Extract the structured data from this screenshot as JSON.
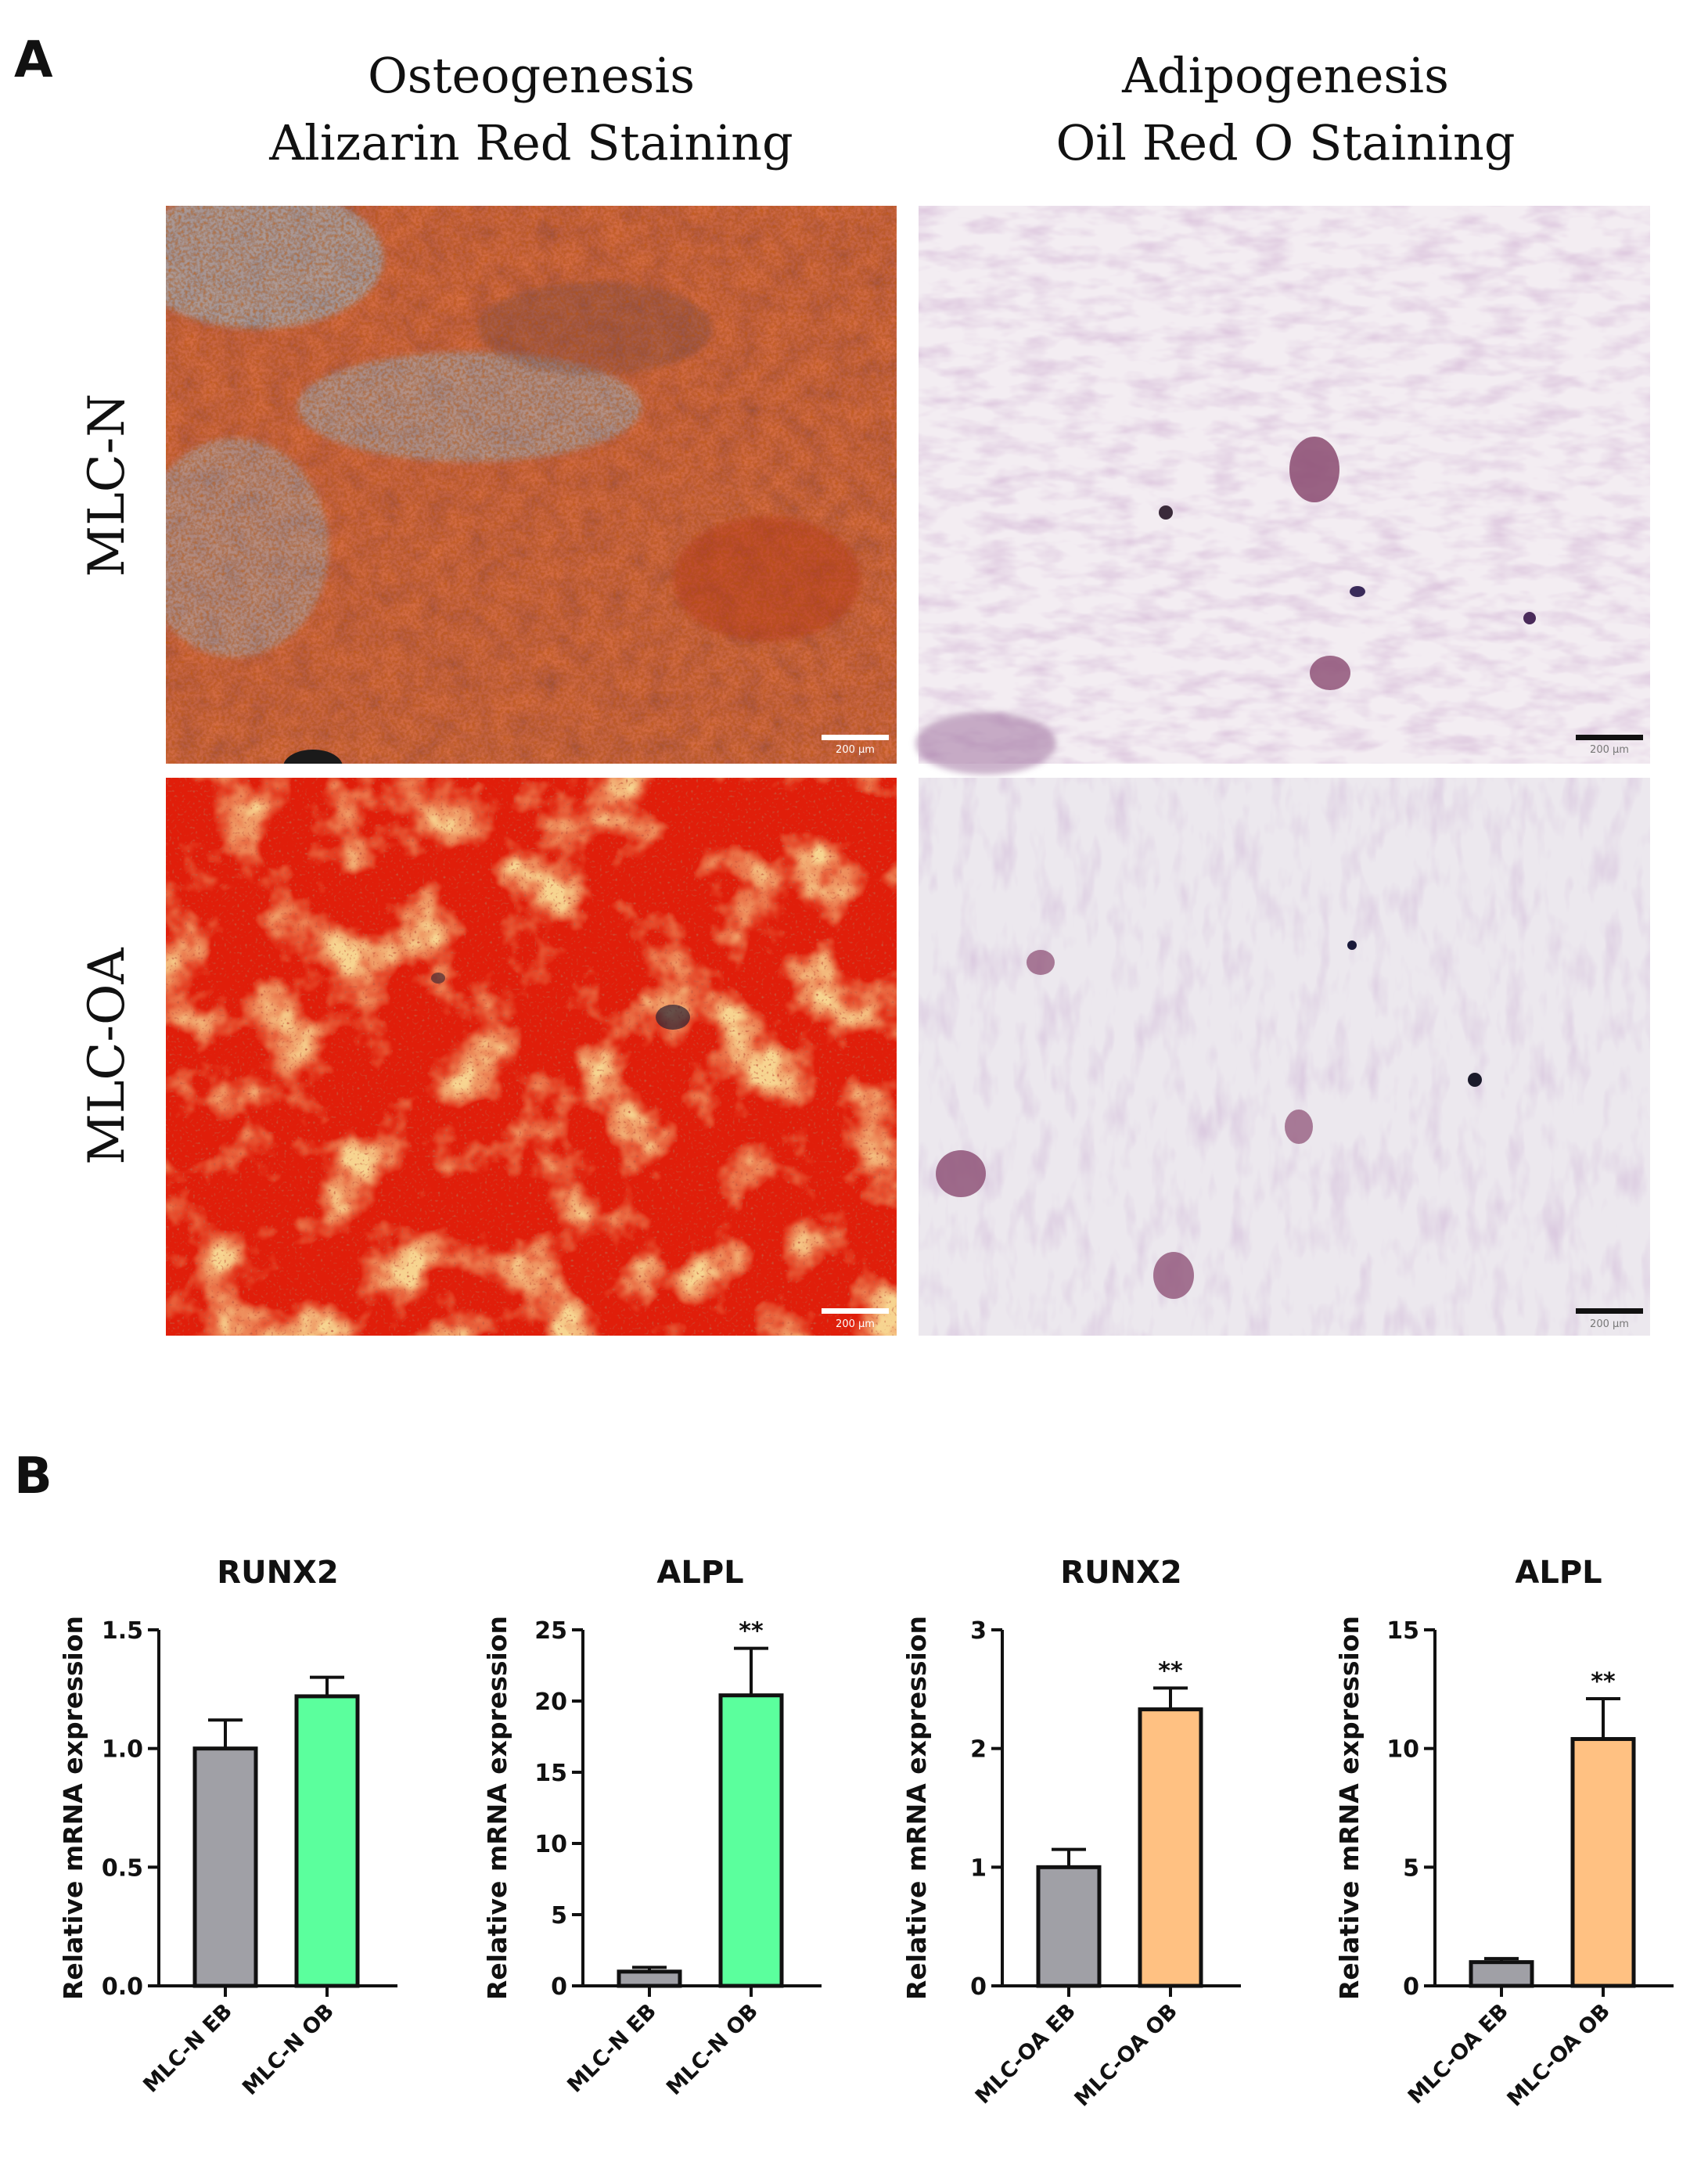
{
  "panel_a": {
    "label": "A",
    "columns": [
      {
        "line1": "Osteogenesis",
        "line2": "Alizarin Red Staining"
      },
      {
        "line1": "Adipogenesis",
        "line2": "Oil Red O Staining"
      }
    ],
    "rows": [
      "MLC-N",
      "MLC-OA"
    ],
    "scale_bars": [
      "200 µm",
      "200 µm",
      "200 µm",
      "200 µm"
    ],
    "colors": {
      "alizarin_red": "#d13a10",
      "alizarin_orange": "#e8a040",
      "alizarin_blue": "#7fb4d0",
      "oil_red_bg": "#efe8ee",
      "oil_red_cell": "#b48cb8",
      "oil_red_dark": "#7a3e6a"
    }
  },
  "panel_b": {
    "label": "B"
  },
  "chart_data": [
    {
      "type": "bar",
      "title": "RUNX2",
      "ylabel": "Relative mRNA expression",
      "categories": [
        "MLC-N EB",
        "MLC-N OB"
      ],
      "values": [
        1.0,
        1.22
      ],
      "errors": [
        0.12,
        0.08
      ],
      "significance": [
        "",
        ""
      ],
      "ylim": [
        0,
        1.5
      ],
      "yticks": [
        0.0,
        0.5,
        1.0,
        1.5
      ],
      "ytick_labels": [
        "0.0",
        "0.5",
        "1.0",
        "1.5"
      ],
      "colors": [
        "#a0a0a6",
        "#5bff9d"
      ],
      "grid": false
    },
    {
      "type": "bar",
      "title": "ALPL",
      "ylabel": "Relative mRNA expression",
      "categories": [
        "MLC-N EB",
        "MLC-N OB"
      ],
      "values": [
        1.0,
        20.4
      ],
      "errors": [
        0.3,
        3.3
      ],
      "significance": [
        "",
        "**"
      ],
      "ylim": [
        0,
        25
      ],
      "yticks": [
        0,
        5,
        10,
        15,
        20,
        25
      ],
      "ytick_labels": [
        "0",
        "5",
        "10",
        "15",
        "20",
        "25"
      ],
      "colors": [
        "#a0a0a6",
        "#5bff9d"
      ],
      "grid": false
    },
    {
      "type": "bar",
      "title": "RUNX2",
      "ylabel": "Relative mRNA expression",
      "categories": [
        "MLC-OA EB",
        "MLC-OA OB"
      ],
      "values": [
        1.0,
        2.33
      ],
      "errors": [
        0.15,
        0.18
      ],
      "significance": [
        "",
        "**"
      ],
      "ylim": [
        0,
        3
      ],
      "yticks": [
        0,
        1,
        2,
        3
      ],
      "ytick_labels": [
        "0",
        "1",
        "2",
        "3"
      ],
      "colors": [
        "#a0a0a6",
        "#ffc182"
      ],
      "grid": false
    },
    {
      "type": "bar",
      "title": "ALPL",
      "ylabel": "Relative mRNA expression",
      "categories": [
        "MLC-OA EB",
        "MLC-OA OB"
      ],
      "values": [
        1.0,
        10.4
      ],
      "errors": [
        0.15,
        1.7
      ],
      "significance": [
        "",
        "**"
      ],
      "ylim": [
        0,
        15
      ],
      "yticks": [
        0,
        5,
        10,
        15
      ],
      "ytick_labels": [
        "0",
        "5",
        "10",
        "15"
      ],
      "colors": [
        "#a0a0a6",
        "#ffc182"
      ],
      "grid": false
    }
  ]
}
